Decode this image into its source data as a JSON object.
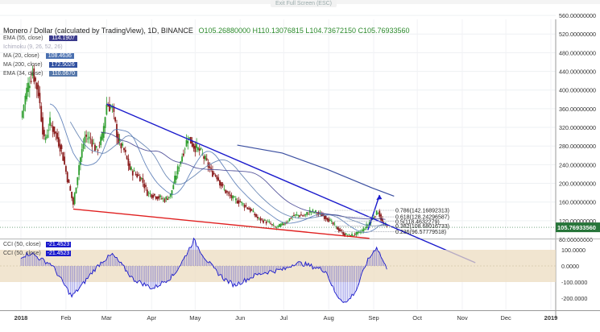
{
  "header": {
    "exit_fullscreen": "Exit Full Screen (ESC)",
    "title": "Monero / Dollar (calculated by TradingView), 1D, BINANCE",
    "ohlc": "O105.26880000  H110.13076815  L104.73672150  C105.76933560"
  },
  "indicators": [
    {
      "label": "EMA (55, close)",
      "value": "114.1907",
      "color": "#3a3a8c"
    },
    {
      "label": "Ichimoku (9, 26, 52, 26)",
      "value": "",
      "color": "#99aabb",
      "faded": true
    },
    {
      "label": "MA (20, close)",
      "value": "108.4636",
      "color": "#4a70b0"
    },
    {
      "label": "MA (200, close)",
      "value": "172.5026",
      "color": "#3050a0"
    },
    {
      "label": "EMA (34, close)",
      "value": "110.0670",
      "color": "#5577aa"
    }
  ],
  "cci_legend": [
    {
      "label": "CCI (50, close)",
      "value": "-21.4523"
    },
    {
      "label": "CCI (50, close)",
      "value": "-21.4523"
    }
  ],
  "last_price_tag": "105.76933560",
  "fib_labels": [
    {
      "text": "0.786(142.16892313)",
      "level": 142.169
    },
    {
      "text": "0.618(128.24296587)",
      "level": 128.243
    },
    {
      "text": "0.5(118.4632279)",
      "level": 118.463
    },
    {
      "text": "0.382(108.68016733)",
      "level": 108.68
    },
    {
      "text": "0.236(96.57779518)",
      "level": 96.578
    }
  ],
  "colors": {
    "up": "#2e9e2e",
    "down": "#8a1c1c",
    "upper_trendline": "#1a1acc",
    "lower_trendline": "#e02020",
    "ma200": "#3a4ea0",
    "cci": "#1a1acc",
    "cci_band": "#ecdcc0",
    "price_tag": "#27753a"
  },
  "chart_data": [
    {
      "type": "candlestick",
      "title": "Monero / Dollar (calculated by TradingView), 1D, BINANCE",
      "x_tick_labels": [
        "2018",
        "Feb",
        "Mar",
        "Apr",
        "May",
        "Jun",
        "Jul",
        "Aug",
        "Sep",
        "Oct",
        "Nov",
        "Dec",
        "2019"
      ],
      "y_tick_labels": [
        "560.00000000",
        "520.00000000",
        "480.00000000",
        "440.00000000",
        "400.00000000",
        "360.00000000",
        "320.00000000",
        "280.00000000",
        "240.00000000",
        "200.00000000",
        "160.00000000",
        "120.00000000",
        "80.00000000"
      ],
      "ylim": [
        55,
        580
      ],
      "y_scale": "linear",
      "close_series": [
        [
          "2018-01-01",
          340
        ],
        [
          "2018-01-05",
          400
        ],
        [
          "2018-01-09",
          440
        ],
        [
          "2018-01-13",
          395
        ],
        [
          "2018-01-17",
          290
        ],
        [
          "2018-01-21",
          330
        ],
        [
          "2018-01-25",
          305
        ],
        [
          "2018-01-29",
          270
        ],
        [
          "2018-02-02",
          210
        ],
        [
          "2018-02-06",
          155
        ],
        [
          "2018-02-10",
          240
        ],
        [
          "2018-02-14",
          300
        ],
        [
          "2018-02-18",
          295
        ],
        [
          "2018-02-22",
          270
        ],
        [
          "2018-02-26",
          300
        ],
        [
          "2018-03-01",
          370
        ],
        [
          "2018-03-05",
          360
        ],
        [
          "2018-03-09",
          290
        ],
        [
          "2018-03-13",
          270
        ],
        [
          "2018-03-17",
          230
        ],
        [
          "2018-03-21",
          220
        ],
        [
          "2018-03-25",
          210
        ],
        [
          "2018-03-29",
          180
        ],
        [
          "2018-04-02",
          175
        ],
        [
          "2018-04-06",
          170
        ],
        [
          "2018-04-10",
          165
        ],
        [
          "2018-04-14",
          175
        ],
        [
          "2018-04-18",
          220
        ],
        [
          "2018-04-22",
          260
        ],
        [
          "2018-04-26",
          300
        ],
        [
          "2018-04-30",
          280
        ],
        [
          "2018-05-04",
          270
        ],
        [
          "2018-05-08",
          250
        ],
        [
          "2018-05-12",
          225
        ],
        [
          "2018-05-16",
          215
        ],
        [
          "2018-05-20",
          190
        ],
        [
          "2018-05-24",
          175
        ],
        [
          "2018-05-28",
          165
        ],
        [
          "2018-06-01",
          160
        ],
        [
          "2018-06-05",
          150
        ],
        [
          "2018-06-09",
          140
        ],
        [
          "2018-06-13",
          125
        ],
        [
          "2018-06-17",
          120
        ],
        [
          "2018-06-21",
          115
        ],
        [
          "2018-06-25",
          105
        ],
        [
          "2018-06-29",
          110
        ],
        [
          "2018-07-03",
          118
        ],
        [
          "2018-07-07",
          130
        ],
        [
          "2018-07-11",
          132
        ],
        [
          "2018-07-15",
          130
        ],
        [
          "2018-07-19",
          140
        ],
        [
          "2018-07-23",
          138
        ],
        [
          "2018-07-27",
          132
        ],
        [
          "2018-07-31",
          125
        ],
        [
          "2018-08-04",
          112
        ],
        [
          "2018-08-08",
          100
        ],
        [
          "2018-08-12",
          90
        ],
        [
          "2018-08-16",
          88
        ],
        [
          "2018-08-20",
          92
        ],
        [
          "2018-08-24",
          98
        ],
        [
          "2018-08-28",
          112
        ],
        [
          "2018-09-01",
          130
        ],
        [
          "2018-09-04",
          140
        ],
        [
          "2018-09-07",
          115
        ],
        [
          "2018-09-10",
          105.77
        ]
      ],
      "overlay_lines": [
        {
          "name": "upper trendline",
          "points": [
            [
              "2018-03-01",
              370
            ],
            [
              "2018-11-10",
              30
            ]
          ]
        },
        {
          "name": "lower trendline",
          "points": [
            [
              "2018-02-06",
              145
            ],
            [
              "2018-08-29",
              82
            ]
          ]
        },
        {
          "name": "MA 200",
          "points": [
            [
              "2018-05-30",
              282
            ],
            [
              "2018-06-30",
              265
            ],
            [
              "2018-07-31",
              230
            ],
            [
              "2018-08-31",
              190
            ],
            [
              "2018-09-15",
              172.5
            ]
          ]
        },
        {
          "name": "projection arrow",
          "points": [
            [
              "2018-08-28",
              100
            ],
            [
              "2018-09-05",
              175
            ]
          ]
        }
      ],
      "fibonacci_levels": [
        142.169,
        128.243,
        118.463,
        108.68,
        96.578
      ],
      "last_price": 105.7693356
    },
    {
      "type": "line",
      "title": "CCI (50, close)",
      "y_tick_labels": [
        "100.0000",
        "0.0000",
        "-100.0000",
        "-200.0000"
      ],
      "ylim": [
        -240,
        160
      ],
      "band": [
        -100,
        100
      ],
      "last_value": -21.4523,
      "x": [
        "2018-01-01",
        "2018-01-08",
        "2018-01-15",
        "2018-01-22",
        "2018-01-29",
        "2018-02-05",
        "2018-02-12",
        "2018-02-19",
        "2018-02-26",
        "2018-03-05",
        "2018-03-12",
        "2018-03-19",
        "2018-03-26",
        "2018-04-02",
        "2018-04-09",
        "2018-04-16",
        "2018-04-23",
        "2018-04-30",
        "2018-05-07",
        "2018-05-14",
        "2018-05-21",
        "2018-05-28",
        "2018-06-04",
        "2018-06-11",
        "2018-06-18",
        "2018-06-25",
        "2018-07-02",
        "2018-07-09",
        "2018-07-16",
        "2018-07-23",
        "2018-07-30",
        "2018-08-06",
        "2018-08-13",
        "2018-08-20",
        "2018-08-27",
        "2018-09-03",
        "2018-09-10"
      ],
      "values": [
        60,
        80,
        40,
        10,
        -90,
        -190,
        -120,
        -40,
        30,
        70,
        0,
        -80,
        -110,
        -140,
        -100,
        -60,
        40,
        160,
        60,
        -20,
        -80,
        -120,
        -90,
        -60,
        -40,
        -30,
        -20,
        20,
        10,
        -10,
        -30,
        -180,
        -230,
        -150,
        20,
        120,
        -21.45
      ]
    }
  ]
}
